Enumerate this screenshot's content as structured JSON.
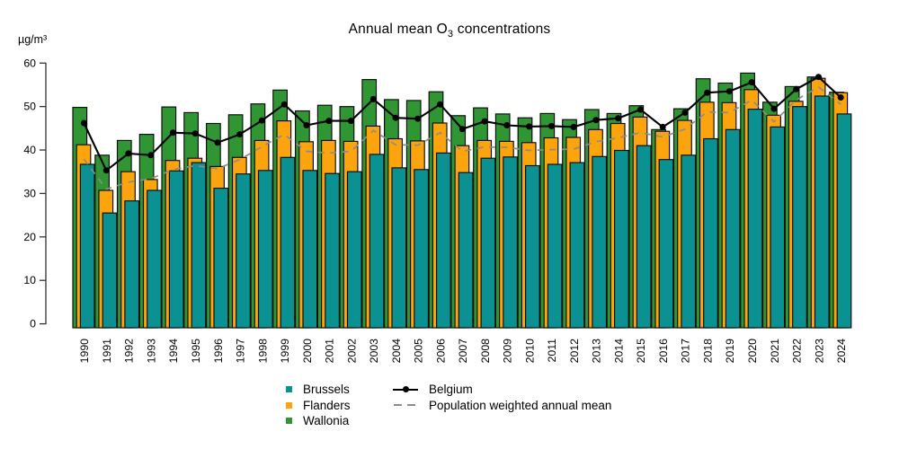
{
  "title": {
    "pre": "Annual mean O",
    "sub": "3",
    "post": " concentrations"
  },
  "y_axis_unit": "µg/m³",
  "colors": {
    "brussels": "#0B9191",
    "flanders": "#FBA40D",
    "wallonia": "#2F9633",
    "belgium_line": "#000000",
    "pop_weighted_line": "#8C8C8C",
    "axis": "#333333"
  },
  "legend": {
    "regions": [
      {
        "label": "Brussels",
        "color_key": "brussels"
      },
      {
        "label": "Flanders",
        "color_key": "flanders"
      },
      {
        "label": "Wallonia",
        "color_key": "wallonia"
      }
    ],
    "lines": [
      {
        "label": "Belgium",
        "color_key": "belgium_line"
      },
      {
        "label": "Population weighted annual mean",
        "color_key": "pop_weighted_line"
      }
    ]
  },
  "chart_data": {
    "type": "bar",
    "title": "Annual mean O3 concentrations",
    "ylabel": "µg/m³",
    "xlabel": "",
    "ylim": [
      0,
      60
    ],
    "yticks": [
      0,
      10,
      20,
      30,
      40,
      50,
      60
    ],
    "grid": false,
    "legend_position": "bottom",
    "categories": [
      "1990",
      "1991",
      "1992",
      "1993",
      "1994",
      "1995",
      "1996",
      "1997",
      "1998",
      "1999",
      "2000",
      "2001",
      "2002",
      "2003",
      "2004",
      "2005",
      "2006",
      "2007",
      "2008",
      "2009",
      "2010",
      "2011",
      "2012",
      "2013",
      "2014",
      "2015",
      "2016",
      "2017",
      "2018",
      "2019",
      "2020",
      "2021",
      "2022",
      "2023",
      "2024"
    ],
    "series": [
      {
        "name": "Wallonia",
        "type": "bar",
        "color_key": "wallonia",
        "values": [
          49.8,
          38.8,
          42.2,
          43.6,
          49.9,
          48.6,
          46.1,
          48.1,
          50.6,
          53.8,
          49.0,
          50.3,
          50.0,
          56.2,
          51.6,
          51.4,
          53.4,
          47.9,
          49.7,
          48.3,
          47.4,
          48.4,
          47.0,
          49.3,
          48.4,
          50.2,
          44.7,
          49.5,
          56.4,
          55.4,
          57.7,
          51.0,
          54.6,
          56.8,
          53.3
        ]
      },
      {
        "name": "Flanders",
        "type": "bar",
        "color_key": "flanders",
        "values": [
          41.2,
          30.7,
          35.0,
          33.2,
          37.6,
          38.1,
          36.2,
          38.3,
          42.2,
          46.7,
          41.9,
          42.2,
          42.0,
          45.5,
          42.6,
          42.1,
          46.2,
          41.0,
          42.2,
          42.0,
          41.7,
          42.8,
          42.9,
          44.7,
          46.1,
          47.6,
          44.3,
          46.8,
          51.0,
          50.9,
          53.9,
          48.0,
          51.2,
          56.5,
          53.2
        ]
      },
      {
        "name": "Brussels",
        "type": "bar",
        "color_key": "brussels",
        "values": [
          36.7,
          25.5,
          28.3,
          30.7,
          35.2,
          37.1,
          31.2,
          34.5,
          35.3,
          38.3,
          35.3,
          34.6,
          35.0,
          39.0,
          35.9,
          35.5,
          39.3,
          34.8,
          38.1,
          38.4,
          36.4,
          36.7,
          37.1,
          38.5,
          39.9,
          41.0,
          37.8,
          38.8,
          42.6,
          44.7,
          49.4,
          45.3,
          50.0,
          52.4,
          48.3
        ]
      },
      {
        "name": "Belgium",
        "type": "line",
        "color_key": "belgium_line",
        "values": [
          46.2,
          35.3,
          39.2,
          38.8,
          44.0,
          43.8,
          41.7,
          43.6,
          46.8,
          50.5,
          45.7,
          46.7,
          46.7,
          51.7,
          47.4,
          47.2,
          50.5,
          44.8,
          46.6,
          45.7,
          45.4,
          45.5,
          45.3,
          46.9,
          47.3,
          49.3,
          45.3,
          48.6,
          53.2,
          53.5,
          55.6,
          49.5,
          54.0,
          56.8,
          52.1
        ]
      },
      {
        "name": "Population weighted annual mean",
        "type": "line-dashed",
        "color_key": "pop_weighted_line",
        "values": [
          37.9,
          31.0,
          32.6,
          33.4,
          35.5,
          36.4,
          35.7,
          37.8,
          40.8,
          43.6,
          39.7,
          39.3,
          39.7,
          44.5,
          41.2,
          41.1,
          44.0,
          39.7,
          40.7,
          40.6,
          39.9,
          40.1,
          40.2,
          41.9,
          42.8,
          44.0,
          43.0,
          44.8,
          48.8,
          48.6,
          51.5,
          46.5,
          51.5,
          54.5,
          50.5
        ]
      }
    ]
  }
}
